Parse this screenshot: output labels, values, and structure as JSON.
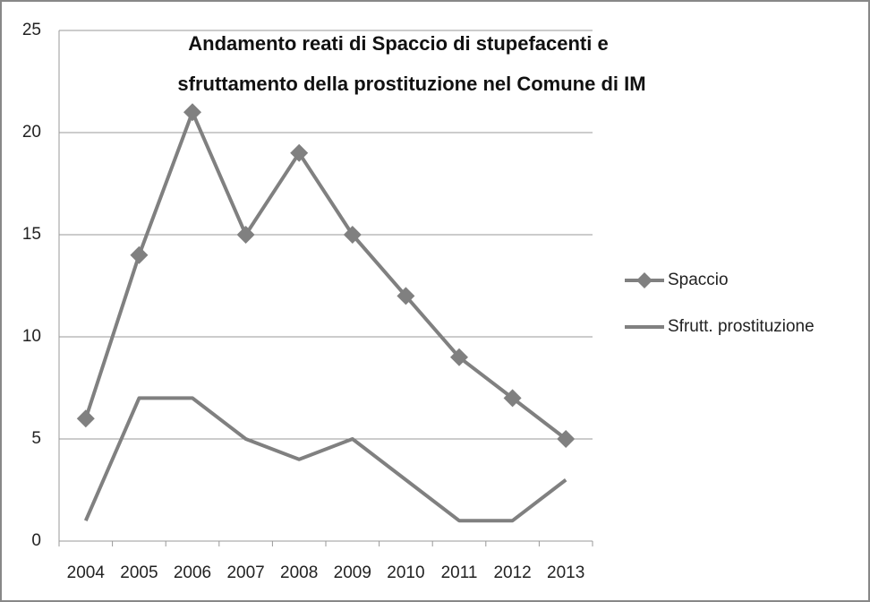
{
  "chart_data": {
    "type": "line",
    "title": [
      "Andamento reati di Spaccio di stupefacenti e",
      "sfruttamento della prostituzione nel Comune di IM"
    ],
    "categories": [
      "2004",
      "2005",
      "2006",
      "2007",
      "2008",
      "2009",
      "2010",
      "2011",
      "2012",
      "2013"
    ],
    "series": [
      {
        "name": "Spaccio",
        "color": "#808080",
        "marker": "diamond",
        "values": [
          6,
          14,
          21,
          15,
          19,
          15,
          12,
          9,
          7,
          5
        ]
      },
      {
        "name": "Sfrutt. prostituzione",
        "color": "#808080",
        "marker": "none",
        "values": [
          1,
          7,
          7,
          5,
          4,
          5,
          3,
          1,
          1,
          3
        ]
      }
    ],
    "ylim": [
      0,
      25
    ],
    "yticks": [
      0,
      5,
      10,
      15,
      20,
      25
    ],
    "grid": true,
    "legend": "right"
  }
}
